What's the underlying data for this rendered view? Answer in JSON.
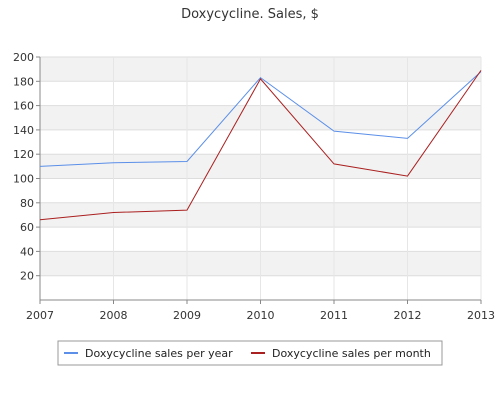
{
  "chart_data": {
    "type": "line",
    "title": "Doxycycline. Sales, $",
    "xlabel": "",
    "ylabel": "",
    "x": [
      "2007",
      "2008",
      "2009",
      "2010",
      "2011",
      "2012",
      "2013"
    ],
    "ylim": [
      0,
      200
    ],
    "yticks": [
      20,
      40,
      60,
      80,
      100,
      120,
      140,
      160,
      180,
      200
    ],
    "grid": true,
    "legend_position": "bottom",
    "series": [
      {
        "name": "Doxycycline sales per year",
        "color": "#5b8fe8",
        "values": [
          110,
          113,
          114,
          183,
          139,
          133,
          188
        ]
      },
      {
        "name": "Doxycycline sales per month",
        "color": "#aa1f1f",
        "values": [
          66,
          72,
          74,
          182,
          112,
          102,
          189
        ]
      }
    ]
  }
}
